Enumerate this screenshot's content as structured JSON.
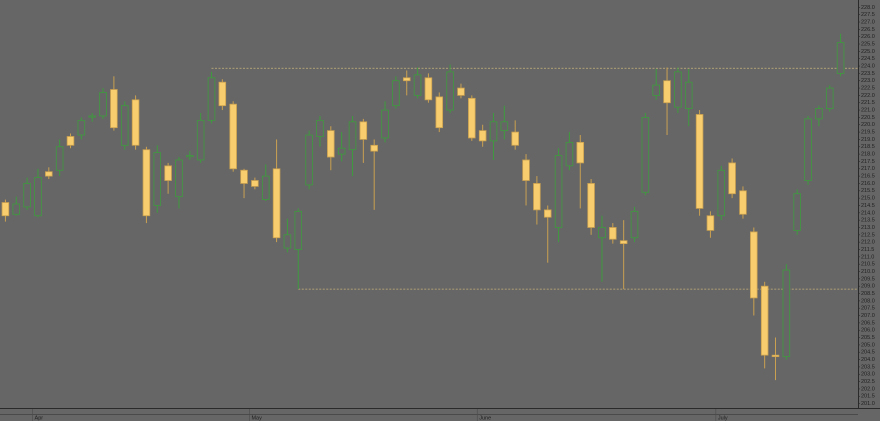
{
  "chart_data": {
    "type": "candlestick",
    "up_color": "#3f9a3f",
    "down_color": "#f8cd6e",
    "down_edge": "#c9a050",
    "ref_color": "#c8b27a",
    "categories": [
      null,
      null,
      null,
      "Apr",
      null,
      null,
      null,
      null,
      null,
      null,
      null,
      null,
      null,
      null,
      null,
      null,
      null,
      null,
      null,
      null,
      null,
      null,
      null,
      "May",
      null,
      null,
      null,
      null,
      null,
      null,
      null,
      null,
      null,
      null,
      null,
      null,
      null,
      null,
      null,
      null,
      null,
      null,
      null,
      null,
      "June",
      null,
      null,
      null,
      null,
      null,
      null,
      null,
      null,
      null,
      null,
      null,
      null,
      null,
      null,
      null,
      null,
      null,
      null,
      null,
      null,
      null,
      "July",
      null,
      null,
      null,
      null,
      null,
      null,
      null,
      null,
      null,
      null,
      null
    ],
    "open": [
      214.7,
      213.9,
      214.4,
      213.8,
      216.8,
      216.9,
      219.2,
      219.3,
      220.6,
      220.6,
      222.4,
      218.6,
      221.7,
      218.3,
      214.5,
      217.2,
      215.1,
      217.9,
      217.6,
      220.3,
      222.9,
      221.4,
      216.9,
      216.2,
      214.9,
      217.0,
      211.6,
      211.5,
      215.9,
      219.2,
      219.6,
      218.0,
      218.3,
      220.2,
      218.6,
      219.1,
      221.3,
      223.2,
      222.0,
      223.2,
      221.9,
      221.0,
      222.5,
      221.8,
      219.6,
      218.9,
      219.6,
      219.5,
      217.6,
      216.0,
      214.2,
      213.0,
      217.2,
      218.8,
      216.0,
      212.3,
      213.0,
      212.1,
      212.3,
      215.4,
      222.0,
      223.0,
      221.2,
      221.1,
      220.7,
      213.8,
      213.8,
      217.4,
      215.5,
      212.7,
      209.0,
      204.3,
      204.2,
      212.8,
      216.2,
      220.4,
      221.1,
      223.5
    ],
    "high": [
      214.9,
      215.1,
      216.4,
      217.0,
      217.1,
      219.0,
      219.4,
      220.5,
      220.8,
      222.5,
      223.3,
      221.6,
      222.0,
      218.5,
      218.6,
      217.4,
      217.8,
      218.2,
      220.8,
      223.6,
      223.1,
      221.6,
      217.0,
      216.4,
      217.3,
      219.0,
      213.6,
      214.3,
      219.6,
      220.6,
      219.9,
      219.5,
      220.6,
      220.4,
      219.0,
      221.6,
      223.3,
      223.7,
      223.9,
      223.5,
      222.2,
      224.1,
      222.8,
      222.0,
      220.0,
      220.8,
      221.3,
      220.3,
      218.0,
      216.5,
      214.5,
      218.4,
      219.5,
      219.3,
      216.3,
      213.8,
      213.3,
      213.5,
      214.4,
      220.8,
      223.8,
      223.9,
      223.9,
      223.8,
      221.0,
      214.1,
      217.2,
      217.7,
      215.8,
      213.0,
      209.3,
      205.5,
      210.5,
      215.6,
      220.6,
      221.3,
      222.7,
      226.2
    ],
    "low": [
      213.4,
      213.8,
      214.2,
      213.7,
      216.3,
      216.5,
      218.4,
      219.0,
      220.2,
      220.4,
      219.6,
      218.3,
      218.3,
      213.3,
      214.0,
      215.3,
      214.3,
      217.6,
      217.4,
      220.1,
      221.0,
      216.8,
      215.0,
      215.6,
      214.8,
      212.0,
      211.3,
      208.8,
      215.6,
      218.5,
      216.9,
      217.5,
      216.5,
      217.4,
      214.2,
      218.8,
      221.1,
      222.0,
      221.8,
      221.5,
      219.5,
      220.8,
      221.8,
      218.9,
      218.5,
      217.6,
      219.0,
      218.3,
      214.5,
      213.2,
      210.6,
      212.0,
      216.9,
      214.3,
      212.5,
      209.3,
      211.9,
      208.8,
      212.0,
      215.2,
      221.7,
      219.3,
      220.8,
      219.9,
      213.8,
      212.3,
      213.5,
      215.0,
      213.6,
      207.0,
      203.4,
      202.6,
      204.0,
      212.5,
      215.9,
      219.9,
      220.9,
      223.3
    ],
    "close": [
      213.8,
      214.6,
      216.0,
      216.4,
      216.5,
      218.5,
      218.6,
      220.3,
      220.6,
      222.2,
      219.8,
      221.3,
      218.6,
      213.8,
      218.1,
      216.2,
      217.6,
      217.9,
      220.3,
      223.2,
      221.3,
      217.0,
      216.0,
      215.8,
      216.5,
      212.3,
      212.5,
      214.1,
      219.3,
      220.3,
      217.8,
      218.4,
      220.2,
      219.0,
      218.2,
      221.0,
      223.0,
      223.0,
      223.4,
      221.7,
      219.8,
      223.6,
      222.0,
      219.1,
      218.9,
      220.2,
      220.2,
      218.6,
      216.2,
      214.2,
      213.7,
      217.9,
      218.8,
      217.4,
      213.0,
      213.0,
      212.2,
      211.9,
      214.1,
      220.5,
      222.7,
      221.5,
      223.6,
      222.9,
      214.3,
      212.8,
      216.9,
      215.3,
      213.9,
      208.2,
      204.3,
      204.2,
      210.1,
      215.3,
      220.4,
      221.1,
      222.5,
      225.6
    ],
    "hlines": [
      {
        "value": 223.85,
        "start": 19
      },
      {
        "value": 208.8,
        "start": 27
      }
    ],
    "ylim": [
      200.7,
      228.5
    ],
    "yticks": [
      {
        "value": 228,
        "label": "228.0"
      },
      {
        "value": 227.5,
        "label": "227.5"
      },
      {
        "value": 227,
        "label": "227.0"
      },
      {
        "value": 226.5,
        "label": "226.5"
      },
      {
        "value": 226,
        "label": "226.0"
      },
      {
        "value": 225.5,
        "label": "225.5"
      },
      {
        "value": 225,
        "label": "225.0"
      },
      {
        "value": 224.5,
        "label": "224.5"
      },
      {
        "value": 224,
        "label": "224.0"
      },
      {
        "value": 223.5,
        "label": "223.5"
      },
      {
        "value": 223,
        "label": "223.0"
      },
      {
        "value": 222.5,
        "label": "222.5"
      },
      {
        "value": 222,
        "label": "222.0"
      },
      {
        "value": 221.5,
        "label": "221.5"
      },
      {
        "value": 221,
        "label": "221.0"
      },
      {
        "value": 220.5,
        "label": "220.5"
      },
      {
        "value": 220,
        "label": "220.0"
      },
      {
        "value": 219.5,
        "label": "219.5"
      },
      {
        "value": 219,
        "label": "219.0"
      },
      {
        "value": 218.5,
        "label": "218.5"
      },
      {
        "value": 218,
        "label": "218.0"
      },
      {
        "value": 217.5,
        "label": "217.5"
      },
      {
        "value": 217,
        "label": "217.0"
      },
      {
        "value": 216.5,
        "label": "216.5"
      },
      {
        "value": 216,
        "label": "216.0"
      },
      {
        "value": 215.5,
        "label": "215.5"
      },
      {
        "value": 215,
        "label": "215.0"
      },
      {
        "value": 214.5,
        "label": "214.5"
      },
      {
        "value": 214,
        "label": "214.0"
      },
      {
        "value": 213.5,
        "label": "213.5"
      },
      {
        "value": 213,
        "label": "213.0"
      },
      {
        "value": 212.5,
        "label": "212.5"
      },
      {
        "value": 212,
        "label": "212.0"
      },
      {
        "value": 211.5,
        "label": "211.5"
      },
      {
        "value": 211,
        "label": "211.0"
      },
      {
        "value": 210.5,
        "label": "210.5"
      },
      {
        "value": 210,
        "label": "210.0"
      },
      {
        "value": 209.5,
        "label": "209.5"
      },
      {
        "value": 209,
        "label": "209.0"
      },
      {
        "value": 208.5,
        "label": "208.5"
      },
      {
        "value": 208,
        "label": "208.0"
      },
      {
        "value": 207.5,
        "label": "207.5"
      },
      {
        "value": 207,
        "label": "207.0"
      },
      {
        "value": 206.5,
        "label": "206.5"
      },
      {
        "value": 206,
        "label": "206.0"
      },
      {
        "value": 205.5,
        "label": "205.5"
      },
      {
        "value": 205,
        "label": "205.0"
      },
      {
        "value": 204.5,
        "label": "204.5"
      },
      {
        "value": 204,
        "label": "204.0"
      },
      {
        "value": 203.5,
        "label": "203.5"
      },
      {
        "value": 203,
        "label": "203.0"
      },
      {
        "value": 202.5,
        "label": "202.5"
      },
      {
        "value": 202,
        "label": "202.0"
      },
      {
        "value": 201.5,
        "label": "201.5"
      },
      {
        "value": 201,
        "label": "201.0"
      }
    ]
  }
}
